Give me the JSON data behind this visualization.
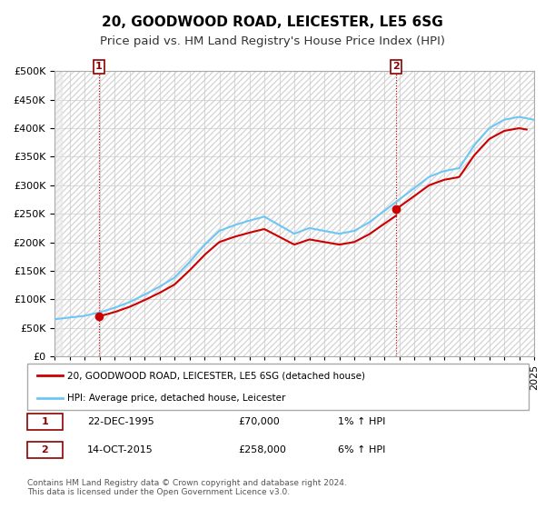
{
  "title": "20, GOODWOOD ROAD, LEICESTER, LE5 6SG",
  "subtitle": "Price paid vs. HM Land Registry's House Price Index (HPI)",
  "ylabel": "",
  "ylim": [
    0,
    500000
  ],
  "yticks": [
    0,
    50000,
    100000,
    150000,
    200000,
    250000,
    300000,
    350000,
    400000,
    450000,
    500000
  ],
  "xlim_start": 1993,
  "xlim_end": 2025,
  "sale_dates": [
    1995.97,
    2015.79
  ],
  "sale_prices": [
    70000,
    258000
  ],
  "sale_labels": [
    "1",
    "2"
  ],
  "hpi_color": "#6ec6f5",
  "price_color": "#cc0000",
  "point_color": "#cc0000",
  "vline_color": "#cc0000",
  "background_color": "#ffffff",
  "grid_color": "#cccccc",
  "hatch_color": "#dddddd",
  "legend_label_price": "20, GOODWOOD ROAD, LEICESTER, LE5 6SG (detached house)",
  "legend_label_hpi": "HPI: Average price, detached house, Leicester",
  "annotation1_label": "1",
  "annotation1_date": "22-DEC-1995",
  "annotation1_price": "£70,000",
  "annotation1_hpi": "1% ↑ HPI",
  "annotation2_label": "2",
  "annotation2_date": "14-OCT-2015",
  "annotation2_price": "£258,000",
  "annotation2_hpi": "6% ↑ HPI",
  "footer": "Contains HM Land Registry data © Crown copyright and database right 2024.\nThis data is licensed under the Open Government Licence v3.0.",
  "title_fontsize": 11,
  "subtitle_fontsize": 9.5,
  "tick_fontsize": 8
}
